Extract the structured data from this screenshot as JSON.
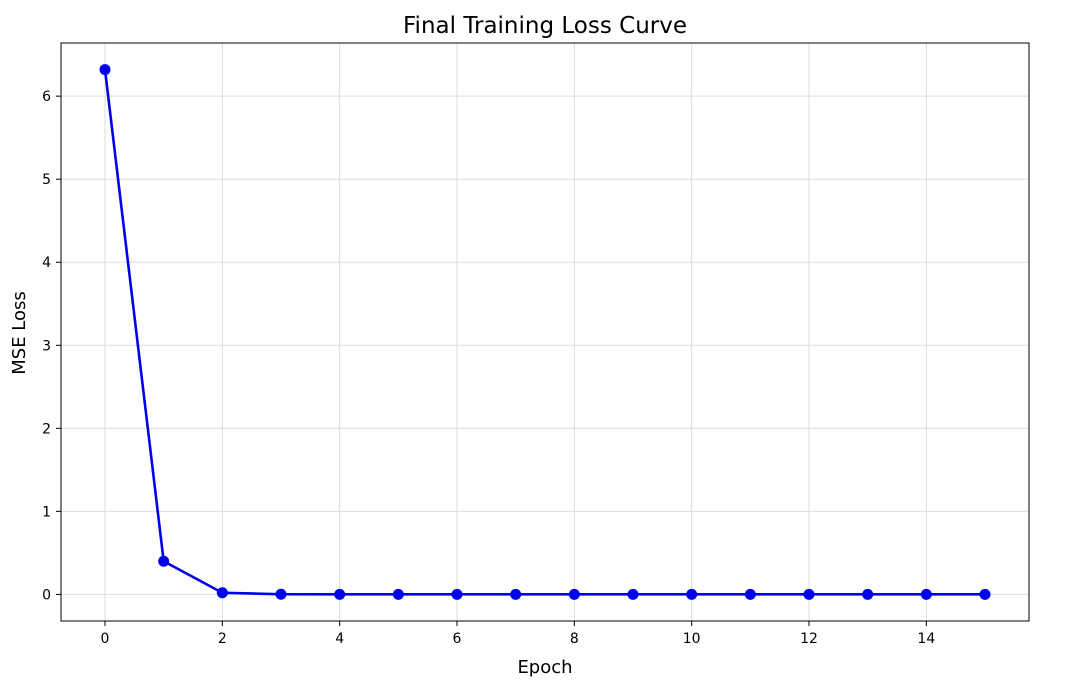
{
  "chart_data": {
    "type": "line",
    "title": "Final Training Loss Curve",
    "xlabel": "Epoch",
    "ylabel": "MSE Loss",
    "xlim": [
      -0.75,
      15.75
    ],
    "ylim": [
      -0.32,
      6.64
    ],
    "xticks": [
      0,
      2,
      4,
      6,
      8,
      10,
      12,
      14
    ],
    "yticks": [
      0,
      1,
      2,
      3,
      4,
      5,
      6
    ],
    "grid": true,
    "legend": "none",
    "series": [
      {
        "color": "#0000ee",
        "marker": "circle",
        "x": [
          0,
          1,
          2,
          3,
          4,
          5,
          6,
          7,
          8,
          9,
          10,
          11,
          12,
          13,
          14,
          15
        ],
        "values": [
          6.32,
          0.4,
          0.02,
          0.002,
          0.001,
          0.001,
          0.001,
          0.001,
          0.001,
          0.001,
          0.001,
          0.001,
          0.001,
          0.001,
          0.001,
          0.001
        ]
      }
    ]
  }
}
